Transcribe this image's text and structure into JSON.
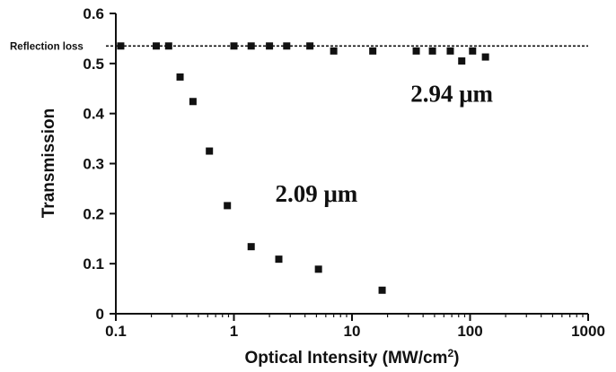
{
  "chart_data": {
    "type": "scatter",
    "title": "",
    "xlabel": "Optical Intensity (MW/cm",
    "xlabel_sup": "2",
    "xlabel_end": ")",
    "ylabel": "Transmission",
    "xscale": "log",
    "xlim": [
      0.1,
      1000
    ],
    "ylim": [
      0,
      0.6
    ],
    "xticks": [
      0.1,
      1,
      10,
      100,
      1000
    ],
    "xtick_labels": [
      "0.1",
      "1",
      "10",
      "100",
      "1000"
    ],
    "yticks": [
      0,
      0.1,
      0.2,
      0.3,
      0.4,
      0.5,
      0.6
    ],
    "ytick_labels": [
      "0",
      "0.1",
      "0.2",
      "0.3",
      "0.4",
      "0.5",
      "0.6"
    ],
    "grid": false,
    "reference_line": {
      "label": "Reflection loss",
      "y": 0.535,
      "style": "dashed"
    },
    "series": [
      {
        "name": "2.94 μm",
        "marker": "square",
        "color": "#111111",
        "x": [
          0.11,
          0.22,
          0.28,
          1.0,
          1.4,
          2.0,
          2.8,
          4.4,
          7.0,
          15,
          35,
          48,
          68,
          85,
          105,
          135
        ],
        "y": [
          0.535,
          0.535,
          0.535,
          0.535,
          0.535,
          0.535,
          0.535,
          0.535,
          0.525,
          0.525,
          0.525,
          0.525,
          0.525,
          0.505,
          0.525,
          0.513
        ]
      },
      {
        "name": "2.09 μm",
        "marker": "square",
        "color": "#111111",
        "x": [
          0.35,
          0.45,
          0.62,
          0.88,
          1.4,
          2.4,
          5.2,
          18
        ],
        "y": [
          0.473,
          0.424,
          0.325,
          0.216,
          0.134,
          0.109,
          0.089,
          0.047
        ]
      }
    ],
    "annotations": [
      {
        "text": "2.94 μm",
        "x": 70,
        "y": 0.44
      },
      {
        "text": "2.09 μm",
        "x": 5.0,
        "y": 0.24
      }
    ]
  }
}
